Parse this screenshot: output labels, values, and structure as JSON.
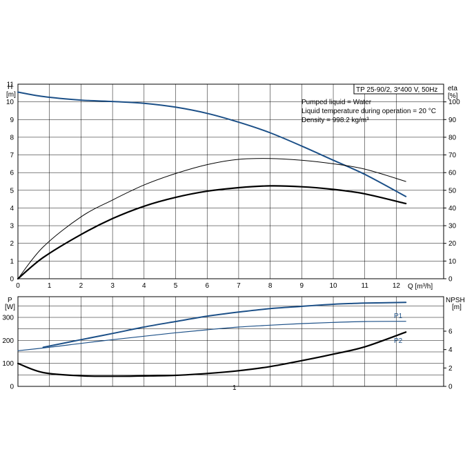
{
  "colors": {
    "curve_blue": "#1b4f87",
    "curve_black": "#000000",
    "grid": "#000000",
    "frame": "#000000"
  },
  "header": {
    "title": "TP 25-90/2, 3*400 V, 50Hz",
    "info_lines": [
      "Pumped liquid = Water",
      "Liquid temperature during operation = 20 °C",
      "Density = 998.2 kg/m³"
    ]
  },
  "chart_data": [
    {
      "type": "line",
      "xlabel": "Q [m³/h]",
      "ylabel_left": [
        "H",
        "[m]"
      ],
      "ylabel_right": [
        "eta",
        "[%]"
      ],
      "xlim": [
        0,
        13.5
      ],
      "ylim_left": [
        0,
        11
      ],
      "ylim_right": [
        0,
        110
      ],
      "grid": true,
      "x_ticks": [
        "0",
        "1",
        "2",
        "3",
        "4",
        "5",
        "6",
        "7",
        "8",
        "9",
        "10",
        "11",
        "12"
      ],
      "y_ticks_left": [
        "0",
        "1",
        "2",
        "3",
        "4",
        "5",
        "6",
        "7",
        "8",
        "9",
        "10",
        "11"
      ],
      "y_ticks_right": [
        "0",
        "10",
        "20",
        "30",
        "40",
        "50",
        "60",
        "70",
        "80",
        "90",
        "100"
      ],
      "series": [
        {
          "axis": "left",
          "style": "head",
          "color": "#1b4f87",
          "x": [
            0,
            0.8,
            2,
            3,
            4,
            5,
            6,
            7,
            8,
            9,
            10,
            11,
            12.3
          ],
          "y": [
            10.55,
            10.3,
            10.1,
            10.02,
            9.92,
            9.7,
            9.35,
            8.85,
            8.25,
            7.5,
            6.7,
            5.9,
            4.65
          ]
        },
        {
          "axis": "right",
          "style": "thin",
          "color": "#000000",
          "x": [
            0,
            0.8,
            2,
            3,
            4,
            5,
            6,
            7,
            8,
            9,
            10,
            11,
            12.3
          ],
          "y": [
            0,
            18,
            35,
            44.5,
            53,
            59.5,
            64.5,
            67.5,
            68,
            67,
            65,
            62,
            55
          ]
        },
        {
          "axis": "right",
          "style": "thick",
          "color": "#000000",
          "x": [
            0,
            0.8,
            2,
            3,
            4,
            5,
            6,
            7,
            8,
            9,
            10,
            11,
            12.3
          ],
          "y": [
            0,
            12,
            25,
            34,
            41,
            46,
            49.5,
            51.5,
            52.5,
            52,
            50.5,
            48,
            42.5
          ]
        }
      ]
    },
    {
      "type": "line",
      "xlim": [
        0,
        13.5
      ],
      "ylabel_left": [
        "P",
        "[W]"
      ],
      "ylabel_right": [
        "NPSH",
        "[m]"
      ],
      "ylim_left": [
        0,
        390
      ],
      "ylim_right": [
        0,
        9.75
      ],
      "grid": true,
      "y_ticks_left": [
        "0",
        "100",
        "200",
        "300"
      ],
      "y_ticks_right": [
        "0",
        "2",
        "4",
        "6"
      ],
      "annotation": "1",
      "series": [
        {
          "name": "P1",
          "axis": "left",
          "style": "p1",
          "color": "#1b4f87",
          "x": [
            0.8,
            2,
            3,
            4,
            5,
            6,
            7,
            8,
            9,
            10,
            11,
            12.3
          ],
          "y": [
            170,
            203,
            230,
            258,
            282,
            305,
            323,
            338,
            348,
            357,
            362,
            365
          ]
        },
        {
          "name": "P2",
          "axis": "left",
          "style": "p2",
          "color": "#1b4f87",
          "x": [
            0,
            1,
            2,
            3,
            4,
            5,
            6,
            7,
            8,
            9,
            10,
            11,
            12.3
          ],
          "y": [
            155,
            170,
            187,
            203,
            218,
            233,
            246,
            258,
            266,
            273,
            278,
            282,
            283
          ]
        },
        {
          "axis": "right",
          "style": "npsh",
          "color": "#000000",
          "x": [
            0,
            0.8,
            2,
            3,
            4,
            5,
            6,
            7,
            8,
            9,
            10,
            11,
            12.3
          ],
          "y": [
            2.5,
            1.5,
            1.15,
            1.1,
            1.13,
            1.2,
            1.4,
            1.7,
            2.15,
            2.8,
            3.5,
            4.3,
            5.9
          ]
        }
      ]
    }
  ]
}
